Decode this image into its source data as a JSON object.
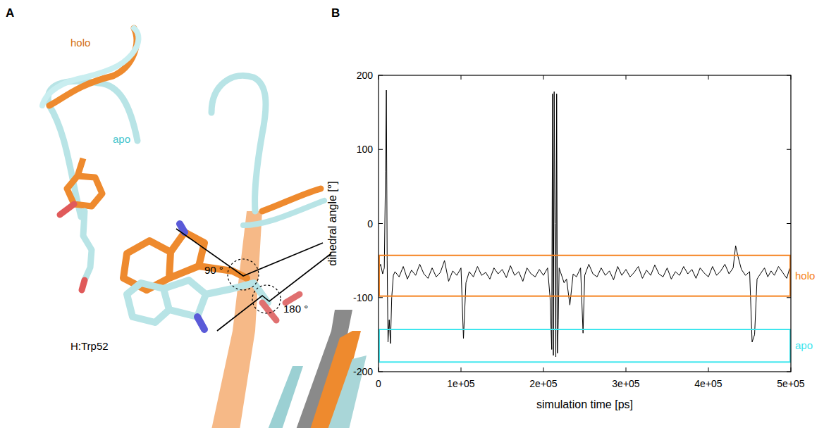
{
  "panel_a": {
    "letter": "A",
    "holo": "holo",
    "apo": "apo",
    "residue": "H:Trp52",
    "angle_holo": "90 °",
    "angle_apo": "180 °"
  },
  "panel_b": {
    "letter": "B"
  },
  "chart_data": {
    "type": "line",
    "x_label": "simulation time [ps]",
    "y_label": "dihedral angle [°]",
    "xlim": [
      0,
      500000
    ],
    "ylim": [
      -200,
      200
    ],
    "xticks": [
      0,
      {
        "value": 100000,
        "label": "1e+05"
      },
      {
        "value": 200000,
        "label": "2e+05"
      },
      {
        "value": 300000,
        "label": "3e+05"
      },
      {
        "value": 400000,
        "label": "4e+05"
      },
      {
        "value": 500000,
        "label": "5e+05"
      }
    ],
    "yticks": [
      -200,
      -100,
      0,
      100,
      200
    ],
    "regions": [
      {
        "label": "holo",
        "color": "#f58220",
        "range": [
          -98,
          -43
        ]
      },
      {
        "label": "apo",
        "color": "#3ee6ee",
        "range": [
          -187,
          -143
        ]
      }
    ],
    "series": [
      {
        "color": "#000000",
        "x": [
          0,
          2500,
          5000,
          7000,
          8500,
          9500,
          10500,
          11500,
          13000,
          14500,
          16000,
          18000,
          20000,
          25000,
          30000,
          35000,
          40000,
          45000,
          50000,
          55000,
          60000,
          65000,
          70000,
          75000,
          80000,
          85000,
          90000,
          95000,
          100000,
          103000,
          106000,
          110000,
          115000,
          120000,
          125000,
          130000,
          135000,
          140000,
          145000,
          150000,
          155000,
          160000,
          165000,
          170000,
          175000,
          180000,
          185000,
          190000,
          195000,
          200000,
          205000,
          208000,
          210000,
          211000,
          212000,
          213000,
          214000,
          215000,
          216000,
          217000,
          218000,
          219000,
          222000,
          225000,
          228000,
          232000,
          236000,
          240000,
          245000,
          248000,
          250000,
          255000,
          260000,
          265000,
          270000,
          275000,
          280000,
          285000,
          290000,
          295000,
          300000,
          305000,
          310000,
          315000,
          320000,
          325000,
          330000,
          335000,
          340000,
          345000,
          350000,
          355000,
          360000,
          365000,
          370000,
          375000,
          380000,
          385000,
          390000,
          395000,
          400000,
          405000,
          410000,
          415000,
          420000,
          425000,
          430000,
          433000,
          436000,
          440000,
          445000,
          450000,
          453000,
          456000,
          459000,
          463000,
          468000,
          472000,
          476000,
          480000,
          485000,
          490000,
          495000,
          500000
        ],
        "values": [
          -62,
          -55,
          -68,
          -60,
          70,
          180,
          -50,
          -160,
          -130,
          -162,
          -100,
          -70,
          -65,
          -72,
          -58,
          -75,
          -63,
          -70,
          -55,
          -68,
          -74,
          -60,
          -72,
          -66,
          -50,
          -78,
          -64,
          -70,
          -60,
          -155,
          -80,
          -65,
          -72,
          -58,
          -70,
          -66,
          -75,
          -60,
          -68,
          -62,
          -73,
          -57,
          -70,
          -65,
          -78,
          -60,
          -68,
          -72,
          -62,
          -70,
          -60,
          -100,
          -170,
          175,
          -178,
          178,
          0,
          -180,
          175,
          -175,
          -130,
          -60,
          -70,
          -80,
          -75,
          -110,
          -68,
          -72,
          -60,
          -148,
          -70,
          -55,
          -68,
          -72,
          -60,
          -70,
          -64,
          -76,
          -58,
          -70,
          -62,
          -72,
          -66,
          -58,
          -74,
          -63,
          -70,
          -56,
          -68,
          -72,
          -60,
          -75,
          -65,
          -70,
          -58,
          -68,
          -62,
          -74,
          -60,
          -67,
          -72,
          -58,
          -70,
          -64,
          -55,
          -68,
          -60,
          -30,
          -45,
          -62,
          -70,
          -65,
          -160,
          -150,
          -75,
          -68,
          -60,
          -72,
          -64,
          -70,
          -58,
          -66,
          -74,
          -55
        ]
      }
    ]
  }
}
